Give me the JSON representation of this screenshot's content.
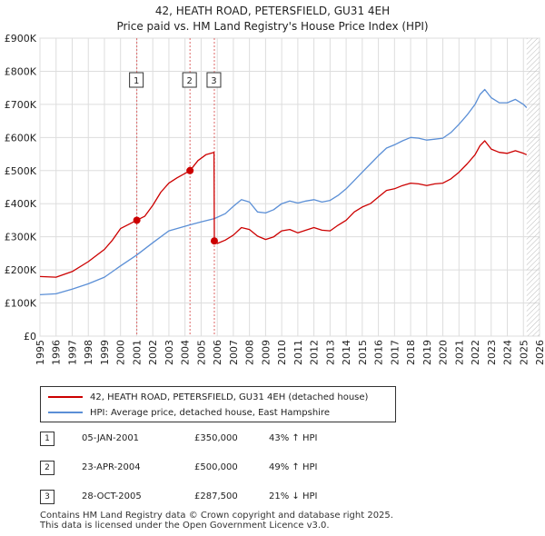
{
  "chart_data": {
    "type": "line",
    "title": "42, HEATH ROAD, PETERSFIELD, GU31 4EH",
    "subtitle": "Price paid vs. HM Land Registry's House Price Index (HPI)",
    "xlabel": "",
    "ylabel": "",
    "xlim": [
      1995,
      2026
    ],
    "ylim": [
      0,
      900000
    ],
    "x_ticks": [
      "1995",
      "1996",
      "1997",
      "1998",
      "1999",
      "2000",
      "2001",
      "2002",
      "2003",
      "2004",
      "2005",
      "2006",
      "2007",
      "2008",
      "2009",
      "2010",
      "2011",
      "2012",
      "2013",
      "2014",
      "2015",
      "2016",
      "2017",
      "2018",
      "2019",
      "2020",
      "2021",
      "2022",
      "2023",
      "2024",
      "2025",
      "2026"
    ],
    "y_ticks": [
      {
        "value": 0,
        "label": "£0"
      },
      {
        "value": 100000,
        "label": "£100K"
      },
      {
        "value": 200000,
        "label": "£200K"
      },
      {
        "value": 300000,
        "label": "£300K"
      },
      {
        "value": 400000,
        "label": "£400K"
      },
      {
        "value": 500000,
        "label": "£500K"
      },
      {
        "value": 600000,
        "label": "£600K"
      },
      {
        "value": 700000,
        "label": "£700K"
      },
      {
        "value": 800000,
        "label": "£800K"
      },
      {
        "value": 900000,
        "label": "£900K"
      }
    ],
    "grid": true,
    "series": [
      {
        "name": "42, HEATH ROAD, PETERSFIELD, GU31 4EH (detached house)",
        "color": "#cc0000",
        "points": [
          [
            1995.0,
            180000
          ],
          [
            1996.0,
            178000
          ],
          [
            1997.0,
            195000
          ],
          [
            1998.0,
            225000
          ],
          [
            1999.0,
            262000
          ],
          [
            1999.5,
            290000
          ],
          [
            2000.0,
            325000
          ],
          [
            2001.01,
            350000
          ],
          [
            2001.5,
            362000
          ],
          [
            2002.0,
            395000
          ],
          [
            2002.5,
            435000
          ],
          [
            2003.0,
            462000
          ],
          [
            2003.5,
            478000
          ],
          [
            2004.31,
            500000
          ],
          [
            2004.8,
            530000
          ],
          [
            2005.3,
            548000
          ],
          [
            2005.8,
            555000
          ],
          [
            2005.82,
            287500
          ],
          [
            2006.0,
            280000
          ],
          [
            2006.5,
            290000
          ],
          [
            2007.0,
            305000
          ],
          [
            2007.5,
            328000
          ],
          [
            2008.0,
            322000
          ],
          [
            2008.5,
            302000
          ],
          [
            2009.0,
            292000
          ],
          [
            2009.5,
            300000
          ],
          [
            2010.0,
            318000
          ],
          [
            2010.5,
            322000
          ],
          [
            2011.0,
            312000
          ],
          [
            2011.5,
            320000
          ],
          [
            2012.0,
            328000
          ],
          [
            2012.5,
            320000
          ],
          [
            2013.0,
            318000
          ],
          [
            2013.5,
            335000
          ],
          [
            2014.0,
            350000
          ],
          [
            2014.5,
            375000
          ],
          [
            2015.0,
            390000
          ],
          [
            2015.5,
            400000
          ],
          [
            2016.0,
            420000
          ],
          [
            2016.5,
            440000
          ],
          [
            2017.0,
            445000
          ],
          [
            2017.5,
            455000
          ],
          [
            2018.0,
            462000
          ],
          [
            2018.5,
            460000
          ],
          [
            2019.0,
            455000
          ],
          [
            2019.5,
            460000
          ],
          [
            2020.0,
            462000
          ],
          [
            2020.5,
            475000
          ],
          [
            2021.0,
            495000
          ],
          [
            2021.5,
            520000
          ],
          [
            2022.0,
            548000
          ],
          [
            2022.3,
            575000
          ],
          [
            2022.6,
            590000
          ],
          [
            2023.0,
            565000
          ],
          [
            2023.5,
            555000
          ],
          [
            2024.0,
            552000
          ],
          [
            2024.5,
            560000
          ],
          [
            2025.0,
            552000
          ],
          [
            2025.2,
            548000
          ]
        ]
      },
      {
        "name": "HPI: Average price, detached house, East Hampshire",
        "color": "#5b8fd6",
        "points": [
          [
            1995.0,
            125000
          ],
          [
            1996.0,
            128000
          ],
          [
            1997.0,
            142000
          ],
          [
            1998.0,
            158000
          ],
          [
            1999.0,
            178000
          ],
          [
            2000.0,
            212000
          ],
          [
            2001.01,
            245000
          ],
          [
            2002.0,
            282000
          ],
          [
            2003.0,
            318000
          ],
          [
            2004.31,
            336000
          ],
          [
            2005.0,
            345000
          ],
          [
            2005.82,
            355000
          ],
          [
            2006.5,
            370000
          ],
          [
            2007.0,
            392000
          ],
          [
            2007.5,
            412000
          ],
          [
            2008.0,
            405000
          ],
          [
            2008.5,
            375000
          ],
          [
            2009.0,
            372000
          ],
          [
            2009.5,
            382000
          ],
          [
            2010.0,
            400000
          ],
          [
            2010.5,
            408000
          ],
          [
            2011.0,
            402000
          ],
          [
            2011.5,
            408000
          ],
          [
            2012.0,
            412000
          ],
          [
            2012.5,
            405000
          ],
          [
            2013.0,
            410000
          ],
          [
            2013.5,
            425000
          ],
          [
            2014.0,
            445000
          ],
          [
            2014.5,
            470000
          ],
          [
            2015.0,
            495000
          ],
          [
            2015.5,
            520000
          ],
          [
            2016.0,
            545000
          ],
          [
            2016.5,
            568000
          ],
          [
            2017.0,
            578000
          ],
          [
            2017.5,
            590000
          ],
          [
            2018.0,
            600000
          ],
          [
            2018.5,
            598000
          ],
          [
            2019.0,
            592000
          ],
          [
            2019.5,
            595000
          ],
          [
            2020.0,
            598000
          ],
          [
            2020.5,
            615000
          ],
          [
            2021.0,
            640000
          ],
          [
            2021.5,
            668000
          ],
          [
            2022.0,
            700000
          ],
          [
            2022.3,
            730000
          ],
          [
            2022.6,
            745000
          ],
          [
            2023.0,
            720000
          ],
          [
            2023.5,
            705000
          ],
          [
            2024.0,
            705000
          ],
          [
            2024.5,
            715000
          ],
          [
            2025.0,
            700000
          ],
          [
            2025.2,
            690000
          ]
        ]
      }
    ],
    "transactions": [
      {
        "num": "1",
        "x": 2001.01,
        "value": 350000,
        "date": "05-JAN-2001",
        "price": "£350,000",
        "hpi": "43% ↑ HPI"
      },
      {
        "num": "2",
        "x": 2004.31,
        "value": 500000,
        "date": "23-APR-2004",
        "price": "£500,000",
        "hpi": "49% ↑ HPI"
      },
      {
        "num": "3",
        "x": 2005.82,
        "value": 287500,
        "date": "28-OCT-2005",
        "price": "£287,500",
        "hpi": "21% ↓ HPI"
      }
    ]
  },
  "footer": {
    "line1": "Contains HM Land Registry data © Crown copyright and database right 2025.",
    "line2": "This data is licensed under the Open Government Licence v3.0."
  }
}
